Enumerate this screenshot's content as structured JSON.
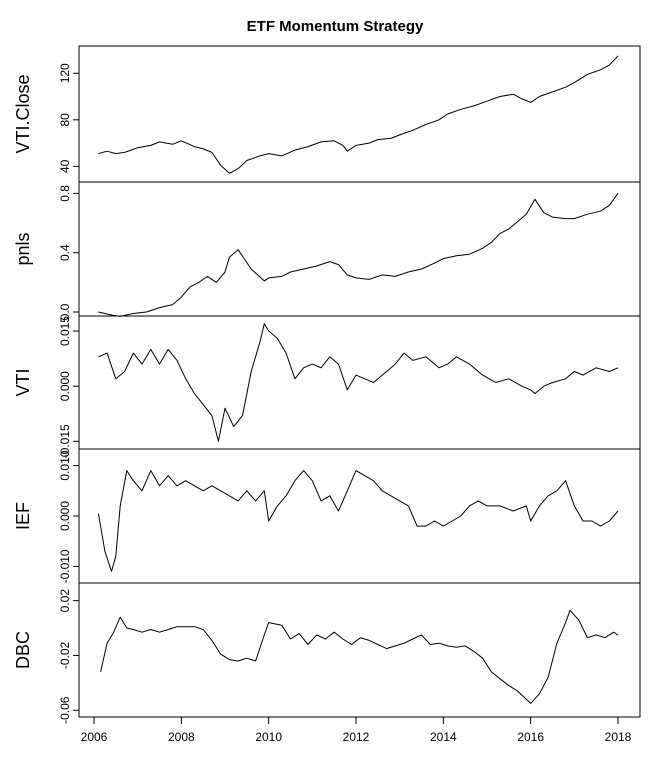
{
  "chart_data": {
    "type": "line",
    "title": "ETF Momentum Strategy",
    "xlim": [
      2006.0,
      2018.0
    ],
    "xticks": [
      2006,
      2008,
      2010,
      2012,
      2014,
      2016,
      2018
    ],
    "xtick_labels": [
      "2006",
      "2008",
      "2010",
      "2012",
      "2014",
      "2016",
      "2018"
    ],
    "panels": [
      {
        "name": "VTI.Close",
        "ylim": [
          30,
          140
        ],
        "yticks": [
          40,
          80,
          120
        ],
        "ytick_labels": [
          "40",
          "80",
          "120"
        ],
        "x": [
          2006.1,
          2006.3,
          2006.5,
          2006.7,
          2007.0,
          2007.3,
          2007.5,
          2007.8,
          2008.0,
          2008.3,
          2008.5,
          2008.7,
          2008.9,
          2009.1,
          2009.3,
          2009.5,
          2009.8,
          2010.0,
          2010.3,
          2010.6,
          2010.9,
          2011.2,
          2011.5,
          2011.7,
          2011.8,
          2012.0,
          2012.3,
          2012.5,
          2012.8,
          2013.0,
          2013.3,
          2013.6,
          2013.9,
          2014.1,
          2014.4,
          2014.7,
          2015.0,
          2015.3,
          2015.6,
          2015.8,
          2016.0,
          2016.2,
          2016.5,
          2016.8,
          2017.0,
          2017.3,
          2017.6,
          2017.8,
          2018.0
        ],
        "y": [
          51,
          53,
          51,
          52,
          56,
          58,
          61,
          59,
          62,
          57,
          55,
          52,
          41,
          34,
          38,
          45,
          49,
          51,
          49,
          54,
          57,
          61,
          62,
          58,
          53,
          58,
          60,
          63,
          64,
          67,
          71,
          76,
          80,
          85,
          89,
          92,
          96,
          100,
          102,
          98,
          95,
          100,
          104,
          108,
          112,
          119,
          123,
          127,
          135
        ]
      },
      {
        "name": "pnls",
        "ylim": [
          0.0,
          0.85
        ],
        "yticks": [
          0.0,
          0.4,
          0.8
        ],
        "ytick_labels": [
          "0.0",
          "0.4",
          "0.8"
        ],
        "x": [
          2006.1,
          2006.4,
          2006.6,
          2006.9,
          2007.2,
          2007.5,
          2007.8,
          2008.0,
          2008.2,
          2008.4,
          2008.6,
          2008.8,
          2009.0,
          2009.1,
          2009.3,
          2009.6,
          2009.9,
          2010.0,
          2010.3,
          2010.5,
          2010.8,
          2011.1,
          2011.4,
          2011.6,
          2011.8,
          2012.0,
          2012.3,
          2012.6,
          2012.9,
          2013.2,
          2013.5,
          2013.8,
          2014.0,
          2014.3,
          2014.6,
          2014.9,
          2015.1,
          2015.3,
          2015.5,
          2015.7,
          2015.9,
          2016.1,
          2016.3,
          2016.5,
          2016.8,
          2017.0,
          2017.3,
          2017.6,
          2017.8,
          2018.0
        ],
        "y": [
          0.0,
          -0.02,
          -0.03,
          -0.01,
          0.0,
          0.03,
          0.05,
          0.1,
          0.17,
          0.2,
          0.24,
          0.2,
          0.27,
          0.37,
          0.42,
          0.29,
          0.21,
          0.23,
          0.24,
          0.27,
          0.29,
          0.31,
          0.34,
          0.32,
          0.25,
          0.23,
          0.22,
          0.25,
          0.24,
          0.27,
          0.29,
          0.33,
          0.36,
          0.38,
          0.39,
          0.43,
          0.47,
          0.53,
          0.56,
          0.61,
          0.66,
          0.76,
          0.67,
          0.64,
          0.63,
          0.63,
          0.66,
          0.68,
          0.72,
          0.8
        ]
      },
      {
        "name": "VTI",
        "ylim": [
          -0.016,
          0.018
        ],
        "yticks": [
          -0.015,
          0.0,
          0.015
        ],
        "ytick_labels": [
          "-0.015",
          "0.000",
          "0.015"
        ],
        "x": [
          2006.1,
          2006.3,
          2006.5,
          2006.7,
          2006.9,
          2007.1,
          2007.3,
          2007.5,
          2007.7,
          2007.9,
          2008.1,
          2008.3,
          2008.5,
          2008.7,
          2008.85,
          2009.0,
          2009.2,
          2009.4,
          2009.6,
          2009.8,
          2009.9,
          2010.0,
          2010.2,
          2010.4,
          2010.6,
          2010.8,
          2011.0,
          2011.2,
          2011.4,
          2011.6,
          2011.8,
          2012.0,
          2012.2,
          2012.4,
          2012.7,
          2012.9,
          2013.1,
          2013.3,
          2013.6,
          2013.9,
          2014.1,
          2014.3,
          2014.6,
          2014.9,
          2015.2,
          2015.5,
          2015.8,
          2016.0,
          2016.1,
          2016.3,
          2016.5,
          2016.8,
          2017.0,
          2017.2,
          2017.5,
          2017.8,
          2018.0
        ],
        "y": [
          0.008,
          0.009,
          0.002,
          0.004,
          0.009,
          0.006,
          0.01,
          0.006,
          0.01,
          0.007,
          0.002,
          -0.002,
          -0.005,
          -0.008,
          -0.015,
          -0.006,
          -0.011,
          -0.008,
          0.004,
          0.012,
          0.017,
          0.015,
          0.013,
          0.009,
          0.002,
          0.005,
          0.006,
          0.005,
          0.008,
          0.006,
          -0.001,
          0.003,
          0.002,
          0.001,
          0.004,
          0.006,
          0.009,
          0.007,
          0.008,
          0.005,
          0.006,
          0.008,
          0.006,
          0.003,
          0.001,
          0.002,
          0.0,
          -0.001,
          -0.002,
          0.0,
          0.001,
          0.002,
          0.004,
          0.003,
          0.005,
          0.004,
          0.005
        ]
      },
      {
        "name": "IEF",
        "ylim": [
          -0.0125,
          0.0125
        ],
        "yticks": [
          -0.01,
          0.0,
          0.01
        ],
        "ytick_labels": [
          "-0.010",
          "0.000",
          "0.010"
        ],
        "x": [
          2006.1,
          2006.25,
          2006.4,
          2006.5,
          2006.6,
          2006.75,
          2006.9,
          2007.1,
          2007.3,
          2007.5,
          2007.7,
          2007.9,
          2008.1,
          2008.3,
          2008.5,
          2008.7,
          2008.9,
          2009.1,
          2009.3,
          2009.5,
          2009.7,
          2009.9,
          2010.0,
          2010.2,
          2010.4,
          2010.6,
          2010.8,
          2011.0,
          2011.2,
          2011.4,
          2011.6,
          2011.8,
          2012.0,
          2012.2,
          2012.4,
          2012.6,
          2012.8,
          2013.0,
          2013.2,
          2013.4,
          2013.6,
          2013.8,
          2014.0,
          2014.2,
          2014.4,
          2014.6,
          2014.8,
          2015.0,
          2015.3,
          2015.6,
          2015.9,
          2016.0,
          2016.2,
          2016.4,
          2016.6,
          2016.8,
          2017.0,
          2017.2,
          2017.4,
          2017.6,
          2017.8,
          2018.0
        ],
        "y": [
          0.0005,
          -0.007,
          -0.011,
          -0.008,
          0.002,
          0.009,
          0.007,
          0.005,
          0.009,
          0.006,
          0.008,
          0.006,
          0.007,
          0.006,
          0.005,
          0.006,
          0.005,
          0.004,
          0.003,
          0.005,
          0.003,
          0.005,
          -0.001,
          0.002,
          0.004,
          0.007,
          0.009,
          0.007,
          0.003,
          0.004,
          0.001,
          0.005,
          0.009,
          0.008,
          0.007,
          0.005,
          0.004,
          0.003,
          0.002,
          -0.002,
          -0.002,
          -0.001,
          -0.002,
          -0.001,
          0.0,
          0.002,
          0.003,
          0.002,
          0.002,
          0.001,
          0.002,
          -0.001,
          0.002,
          0.004,
          0.005,
          0.007,
          0.002,
          -0.001,
          -0.001,
          -0.002,
          -0.001,
          0.001
        ]
      },
      {
        "name": "DBC",
        "ylim": [
          -0.062,
          0.03
        ],
        "yticks": [
          -0.06,
          -0.02,
          0.02
        ],
        "ytick_labels": [
          "-0.06",
          "-0.02",
          "0.02"
        ],
        "x": [
          2006.15,
          2006.3,
          2006.45,
          2006.6,
          2006.75,
          2006.9,
          2007.1,
          2007.3,
          2007.5,
          2007.7,
          2007.9,
          2008.1,
          2008.3,
          2008.5,
          2008.7,
          2008.9,
          2009.1,
          2009.3,
          2009.5,
          2009.7,
          2009.9,
          2010.0,
          2010.3,
          2010.5,
          2010.7,
          2010.9,
          2011.1,
          2011.3,
          2011.5,
          2011.7,
          2011.9,
          2012.1,
          2012.3,
          2012.5,
          2012.7,
          2012.9,
          2013.1,
          2013.3,
          2013.5,
          2013.7,
          2013.9,
          2014.1,
          2014.3,
          2014.5,
          2014.7,
          2014.9,
          2015.1,
          2015.3,
          2015.5,
          2015.7,
          2015.9,
          2016.0,
          2016.2,
          2016.4,
          2016.6,
          2016.8,
          2016.9,
          2017.1,
          2017.3,
          2017.5,
          2017.7,
          2017.9,
          2018.0
        ],
        "y": [
          -0.032,
          -0.011,
          -0.003,
          0.008,
          0.0,
          -0.001,
          -0.003,
          -0.001,
          -0.003,
          -0.001,
          0.001,
          0.001,
          0.001,
          -0.001,
          -0.009,
          -0.019,
          -0.023,
          -0.024,
          -0.022,
          -0.024,
          -0.005,
          0.004,
          0.002,
          -0.008,
          -0.004,
          -0.012,
          -0.005,
          -0.008,
          -0.003,
          -0.008,
          -0.012,
          -0.007,
          -0.009,
          -0.012,
          -0.015,
          -0.013,
          -0.011,
          -0.008,
          -0.005,
          -0.012,
          -0.011,
          -0.013,
          -0.014,
          -0.013,
          -0.017,
          -0.022,
          -0.032,
          -0.037,
          -0.042,
          -0.046,
          -0.052,
          -0.055,
          -0.048,
          -0.036,
          -0.011,
          0.004,
          0.013,
          0.006,
          -0.007,
          -0.005,
          -0.007,
          -0.003,
          -0.005
        ]
      }
    ]
  }
}
